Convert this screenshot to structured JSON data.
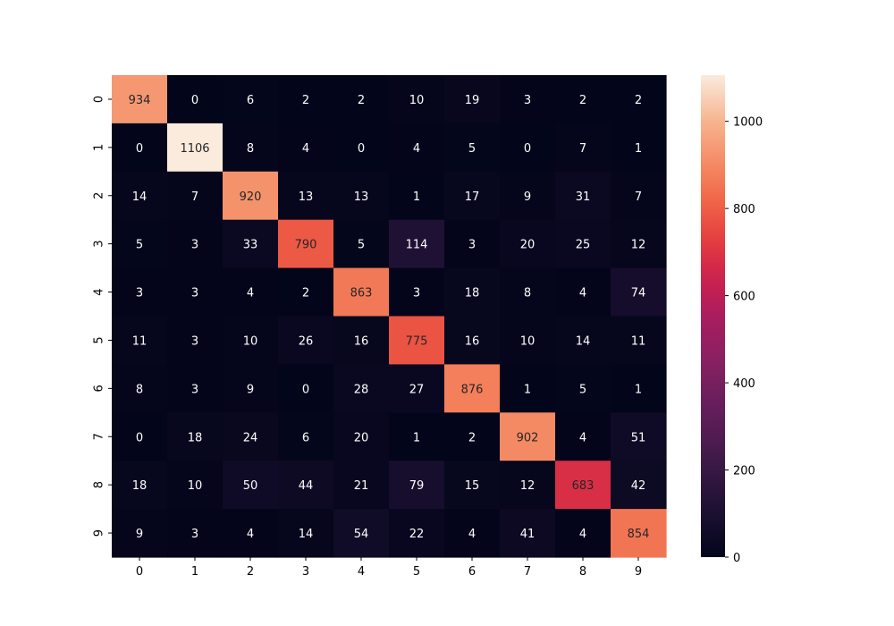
{
  "chart_data": {
    "type": "heatmap",
    "title": "",
    "xlabel": "",
    "ylabel": "",
    "x_categories": [
      "0",
      "1",
      "2",
      "3",
      "4",
      "5",
      "6",
      "7",
      "8",
      "9"
    ],
    "y_categories": [
      "0",
      "1",
      "2",
      "3",
      "4",
      "5",
      "6",
      "7",
      "8",
      "9"
    ],
    "values": [
      [
        934,
        0,
        6,
        2,
        2,
        10,
        19,
        3,
        2,
        2
      ],
      [
        0,
        1106,
        8,
        4,
        0,
        4,
        5,
        0,
        7,
        1
      ],
      [
        14,
        7,
        920,
        13,
        13,
        1,
        17,
        9,
        31,
        7
      ],
      [
        5,
        3,
        33,
        790,
        5,
        114,
        3,
        20,
        25,
        12
      ],
      [
        3,
        3,
        4,
        2,
        863,
        3,
        18,
        8,
        4,
        74
      ],
      [
        11,
        3,
        10,
        26,
        16,
        775,
        16,
        10,
        14,
        11
      ],
      [
        8,
        3,
        9,
        0,
        28,
        27,
        876,
        1,
        5,
        1
      ],
      [
        0,
        18,
        24,
        6,
        20,
        1,
        2,
        902,
        4,
        51
      ],
      [
        18,
        10,
        50,
        44,
        21,
        79,
        15,
        12,
        683,
        42
      ],
      [
        9,
        3,
        4,
        14,
        54,
        22,
        4,
        41,
        4,
        854
      ]
    ],
    "colorbar": {
      "vmin": 0,
      "vmax": 1106,
      "ticks": [
        0,
        200,
        400,
        600,
        800,
        1000
      ],
      "colormap": "rocket",
      "position": "right"
    },
    "annotations": true,
    "grid": false
  }
}
